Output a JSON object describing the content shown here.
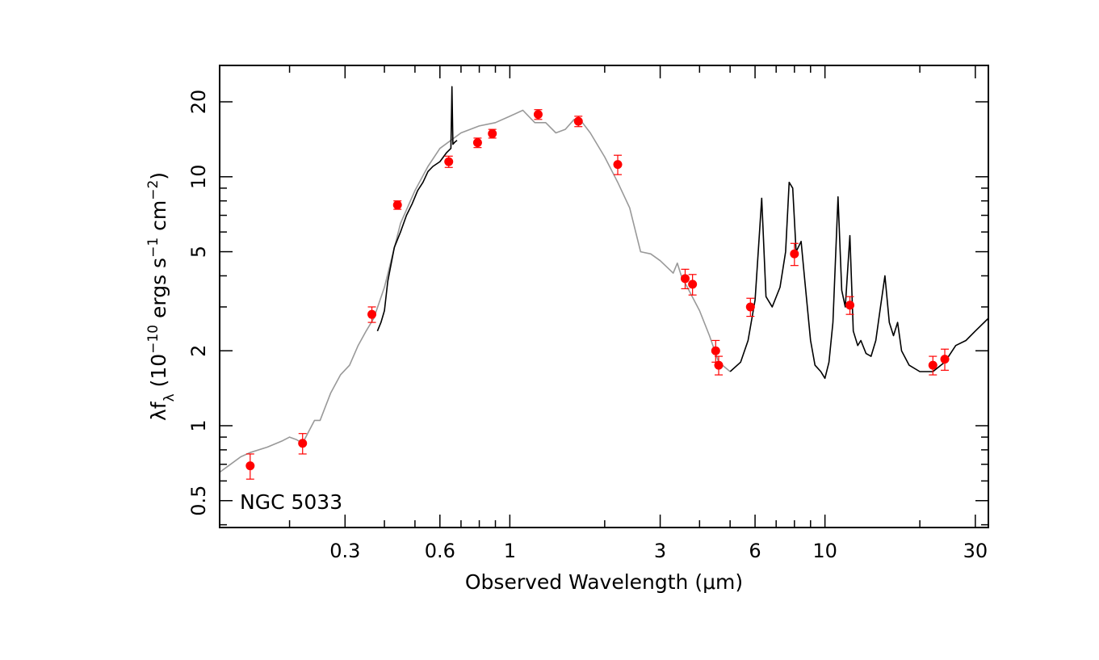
{
  "chart_data": {
    "type": "scatter",
    "xlabel": "Observed Wavelength (μm)",
    "ylabel": {
      "prefix": "λf",
      "sub": "λ",
      "unit_open": " (10",
      "exp1": "−10",
      "mid1": " ergs s",
      "exp2": "−1",
      "mid2": " cm",
      "exp3": "−2",
      "close": ")"
    },
    "annotation": "NGC 5033",
    "x_scale": "log",
    "y_scale": "log",
    "xlim": [
      0.12,
      33
    ],
    "ylim": [
      0.39,
      28
    ],
    "x_ticks": [
      {
        "value": 0.3,
        "label": "0.3"
      },
      {
        "value": 0.6,
        "label": "0.6"
      },
      {
        "value": 1,
        "label": "1"
      },
      {
        "value": 3,
        "label": "3"
      },
      {
        "value": 6,
        "label": "6"
      },
      {
        "value": 10,
        "label": "10"
      },
      {
        "value": 30,
        "label": "30"
      }
    ],
    "y_ticks": [
      {
        "value": 0.5,
        "label": "0.5"
      },
      {
        "value": 1,
        "label": "1"
      },
      {
        "value": 2,
        "label": "2"
      },
      {
        "value": 5,
        "label": "5"
      },
      {
        "value": 10,
        "label": "10"
      },
      {
        "value": 20,
        "label": "20"
      }
    ],
    "colors": {
      "model": "#999999",
      "observed": "#000000",
      "points": "#ff0000"
    },
    "series": [
      {
        "role": "model-template",
        "style": "gray-line",
        "x": [
          0.12,
          0.13,
          0.14,
          0.15,
          0.17,
          0.19,
          0.2,
          0.21,
          0.22,
          0.24,
          0.25,
          0.27,
          0.29,
          0.31,
          0.33,
          0.35,
          0.37,
          0.4,
          0.45,
          0.5,
          0.55,
          0.6,
          0.7,
          0.8,
          0.9,
          1.0,
          1.1,
          1.2,
          1.3,
          1.4,
          1.5,
          1.6,
          1.7,
          1.8,
          2.0,
          2.2,
          2.4,
          2.6,
          2.8,
          3.0,
          3.3,
          3.4,
          3.5,
          3.7,
          4.0,
          4.3,
          4.6,
          5.0
        ],
        "y": [
          0.65,
          0.7,
          0.75,
          0.78,
          0.82,
          0.87,
          0.9,
          0.88,
          0.85,
          1.05,
          1.05,
          1.35,
          1.6,
          1.75,
          2.1,
          2.4,
          2.7,
          3.6,
          6.5,
          8.8,
          11.0,
          13.0,
          15.0,
          16.0,
          16.5,
          17.5,
          18.5,
          16.5,
          16.5,
          15.0,
          15.5,
          17.0,
          16.5,
          15.0,
          12.0,
          9.5,
          7.5,
          5.0,
          4.9,
          4.6,
          4.1,
          4.5,
          4.0,
          3.5,
          2.9,
          2.3,
          1.8,
          1.65
        ]
      },
      {
        "role": "observed-optical",
        "style": "black-line",
        "x": [
          0.38,
          0.39,
          0.4,
          0.41,
          0.43,
          0.45,
          0.47,
          0.49,
          0.51,
          0.53,
          0.55,
          0.57,
          0.6,
          0.63,
          0.65,
          0.655,
          0.66,
          0.67,
          0.68
        ],
        "y": [
          2.4,
          2.6,
          2.9,
          3.8,
          5.2,
          6.0,
          7.0,
          7.8,
          8.8,
          9.5,
          10.5,
          11.0,
          11.5,
          12.5,
          13.0,
          23.0,
          13.5,
          13.8,
          14.0
        ]
      },
      {
        "role": "observed-mir",
        "style": "black-line",
        "x": [
          5.0,
          5.4,
          5.7,
          6.0,
          6.2,
          6.3,
          6.5,
          6.8,
          7.2,
          7.5,
          7.7,
          7.9,
          8.1,
          8.4,
          8.6,
          9.0,
          9.3,
          9.7,
          10.0,
          10.3,
          10.6,
          11.0,
          11.3,
          11.6,
          12.0,
          12.3,
          12.7,
          13.0,
          13.5,
          14.0,
          14.5,
          15.0,
          15.5,
          16.0,
          16.5,
          17.0,
          17.5,
          18.5,
          20.0,
          22.0,
          24.0,
          26.0,
          28.0,
          30.0,
          33.0
        ],
        "y": [
          1.65,
          1.8,
          2.2,
          3.2,
          6.0,
          8.2,
          3.3,
          3.0,
          3.6,
          5.0,
          9.5,
          9.0,
          5.0,
          5.5,
          4.0,
          2.2,
          1.75,
          1.65,
          1.55,
          1.8,
          2.6,
          8.3,
          3.5,
          3.0,
          5.8,
          2.4,
          2.1,
          2.2,
          1.95,
          1.9,
          2.2,
          3.0,
          4.0,
          2.6,
          2.3,
          2.6,
          2.0,
          1.75,
          1.65,
          1.65,
          1.8,
          2.1,
          2.2,
          2.4,
          2.7
        ]
      },
      {
        "role": "photometry",
        "style": "red-points",
        "x": [
          0.15,
          0.22,
          0.365,
          0.44,
          0.64,
          0.79,
          0.88,
          1.23,
          1.65,
          2.2,
          3.6,
          3.8,
          4.5,
          4.6,
          5.8,
          8.0,
          12.0,
          22.0,
          24.0
        ],
        "y": [
          0.69,
          0.85,
          2.8,
          7.7,
          11.5,
          13.7,
          14.9,
          17.8,
          16.7,
          11.2,
          3.9,
          3.7,
          2.0,
          1.75,
          3.0,
          4.9,
          3.05,
          1.75,
          1.85
        ],
        "yerr": [
          0.08,
          0.08,
          0.2,
          0.3,
          0.6,
          0.6,
          0.6,
          0.8,
          0.8,
          1.0,
          0.35,
          0.35,
          0.2,
          0.15,
          0.25,
          0.5,
          0.25,
          0.15,
          0.18
        ]
      }
    ]
  }
}
